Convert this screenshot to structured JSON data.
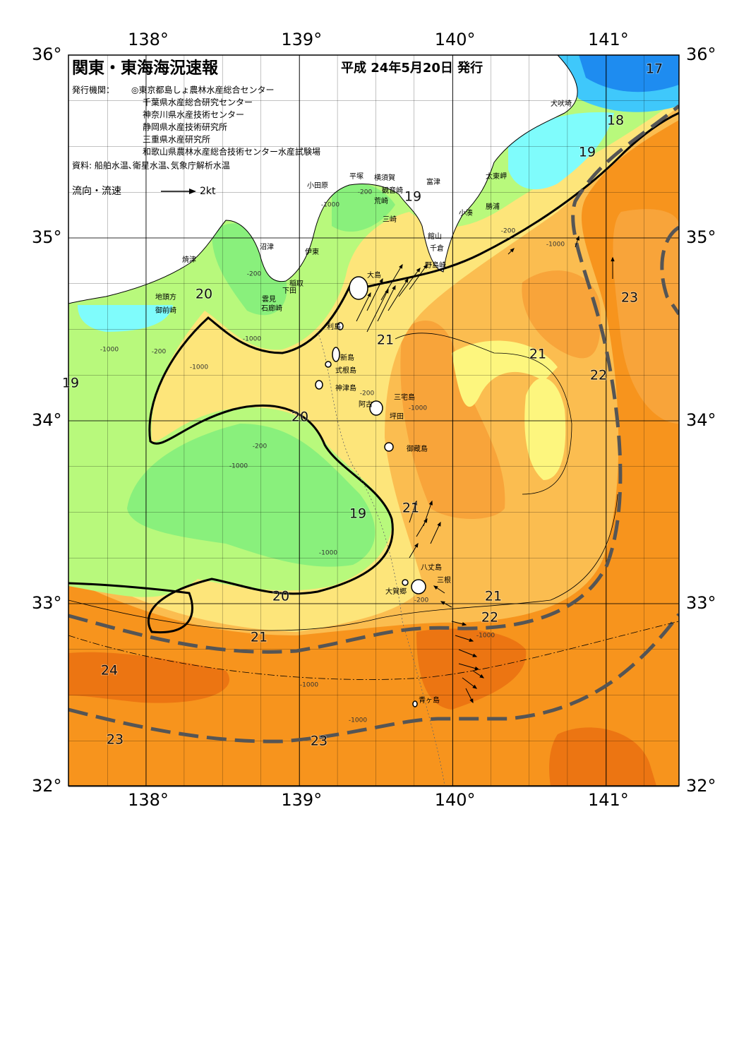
{
  "header": {
    "title": "関東・東海海況速報",
    "date": "平成 24年5月20日 発行",
    "issuer_label": "発行機関：",
    "issuers": [
      "◎東京都島しょ農林水産総合センター",
      "千葉県水産総合研究センター",
      "神奈川県水産技術センター",
      "静岡県水産技術研究所",
      "三重県水産研究所",
      "和歌山県農林水産総合技術センター水産試験場"
    ],
    "source": "資料: 船舶水温､衛星水温､気象庁解析水温"
  },
  "legend": {
    "label": "流向・流速",
    "scale": "2kt"
  },
  "axes": {
    "lon_ticks": [
      {
        "value": 138,
        "label": "138°"
      },
      {
        "value": 139,
        "label": "139°"
      },
      {
        "value": 140,
        "label": "140°"
      },
      {
        "value": 141,
        "label": "141°"
      }
    ],
    "lat_ticks": [
      {
        "value": 36,
        "label": "36°"
      },
      {
        "value": 35,
        "label": "35°"
      },
      {
        "value": 34,
        "label": "34°"
      },
      {
        "value": 33,
        "label": "33°"
      },
      {
        "value": 32,
        "label": "32°"
      }
    ]
  },
  "places": [
    "犬吠埼",
    "太東岬",
    "勝浦",
    "小湊",
    "富津",
    "館山",
    "千倉",
    "野島崎",
    "横須賀",
    "観音崎",
    "荒崎",
    "三崎",
    "平塚",
    "小田原",
    "沼津",
    "伊東",
    "焼津",
    "稲取",
    "下田",
    "雲見",
    "石廊崎",
    "地頭方",
    "御前崎",
    "大島",
    "利島",
    "新島",
    "式根島",
    "神津島",
    "三宅島",
    "阿古",
    "坪田",
    "御蔵島",
    "八丈島",
    "三根",
    "大賀郷",
    "青ヶ島"
  ],
  "temperature_labels": [
    17,
    18,
    19,
    19,
    20,
    21,
    21,
    22,
    23,
    19,
    20,
    21,
    19,
    20,
    21,
    22,
    21,
    24,
    23,
    23
  ],
  "depth_labels": [
    -200,
    -1000,
    -200,
    -1000,
    -200,
    -1000,
    -1000,
    -200,
    -1000,
    -200,
    -1000,
    -1000,
    -1000,
    -1000,
    -1000,
    -200,
    -1000,
    -200
  ]
}
